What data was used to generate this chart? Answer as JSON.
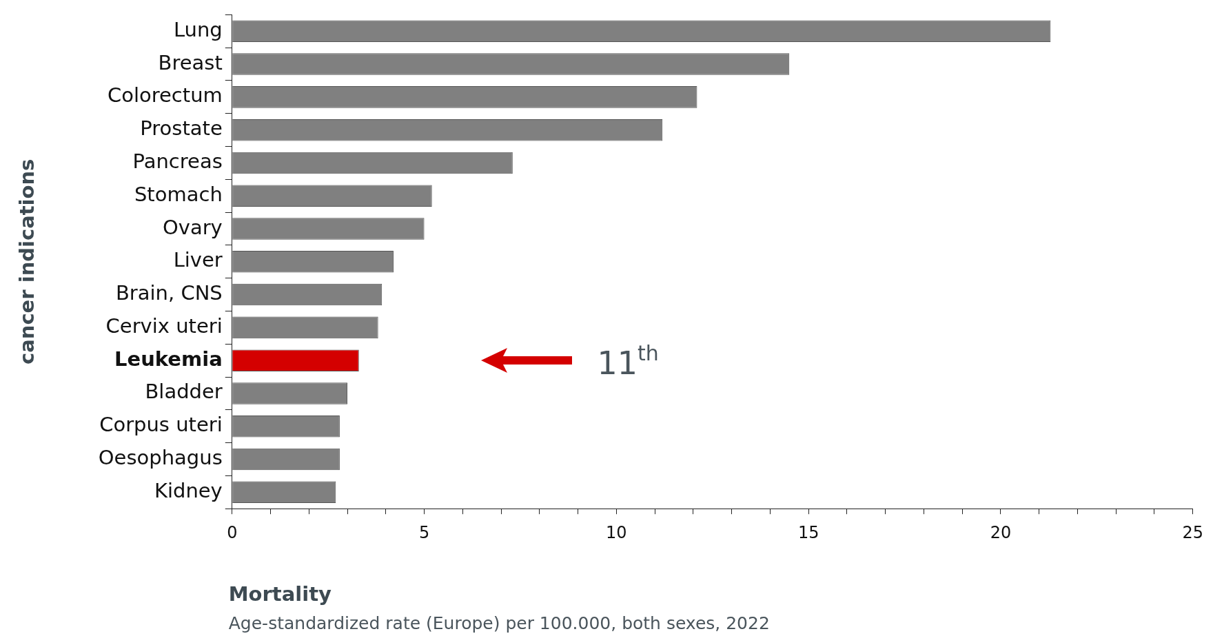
{
  "chart_data": {
    "type": "bar",
    "orientation": "horizontal",
    "title": "Mortality",
    "subtitle": "Age-standardized rate (Europe) per 100.000, both sexes, 2022",
    "ylabel": "cancer indications",
    "categories": [
      "Lung",
      "Breast",
      "Colorectum",
      "Prostate",
      "Pancreas",
      "Stomach",
      "Ovary",
      "Liver",
      "Brain, CNS",
      "Cervix uteri",
      "Leukemia",
      "Bladder",
      "Corpus uteri",
      "Oesophagus",
      "Kidney"
    ],
    "values": [
      21.3,
      14.5,
      12.1,
      11.2,
      7.3,
      5.2,
      5.0,
      4.2,
      3.9,
      3.8,
      3.3,
      3.0,
      2.8,
      2.8,
      2.7
    ],
    "colors": [
      "#808080",
      "#808080",
      "#808080",
      "#808080",
      "#808080",
      "#808080",
      "#808080",
      "#808080",
      "#808080",
      "#808080",
      "#d40000",
      "#808080",
      "#808080",
      "#808080",
      "#808080"
    ],
    "xlim": [
      0,
      25
    ],
    "xticks": [
      0,
      {
        "value": 1,
        "label": null
      },
      {
        "value": 2,
        "label": null
      },
      {
        "value": 3,
        "label": null
      },
      {
        "value": 4,
        "label": null
      },
      5,
      {
        "value": 6,
        "label": null
      },
      {
        "value": 7,
        "label": null
      },
      {
        "value": 8,
        "label": null
      },
      {
        "value": 9,
        "label": null
      },
      10,
      {
        "value": 11,
        "label": null
      },
      {
        "value": 12,
        "label": null
      },
      {
        "value": 13,
        "label": null
      },
      {
        "value": 14,
        "label": null
      },
      15,
      {
        "value": 16,
        "label": null
      },
      {
        "value": 17,
        "label": null
      },
      {
        "value": 18,
        "label": null
      },
      {
        "value": 19,
        "label": null
      },
      20,
      {
        "value": 21,
        "label": null
      },
      {
        "value": 22,
        "label": null
      },
      {
        "value": 23,
        "label": null
      },
      {
        "value": 24,
        "label": null
      },
      25
    ],
    "grid": false,
    "legend": false,
    "annotations": [
      "11$^{th}$"
    ]
  }
}
